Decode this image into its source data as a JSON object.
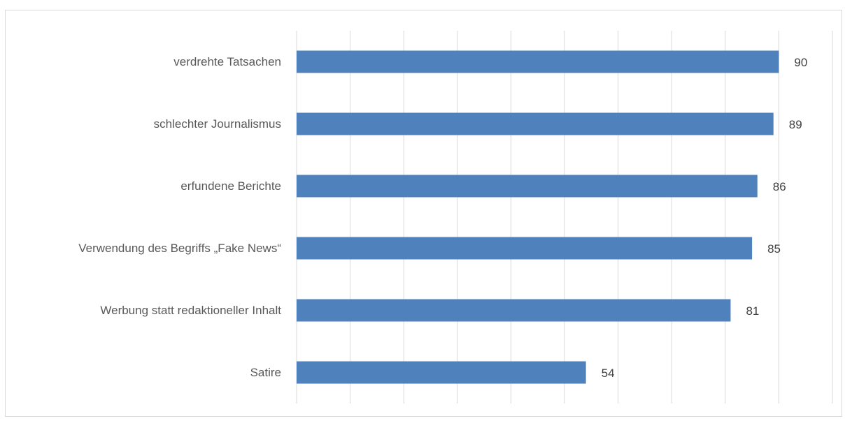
{
  "chart_data": {
    "type": "bar",
    "orientation": "horizontal",
    "categories": [
      "verdrehte Tatsachen",
      "schlechter Journalismus",
      "erfundene Berichte",
      "Verwendung des Begriffs „Fake News“",
      "Werbung statt redaktioneller Inhalt",
      "Satire"
    ],
    "values": [
      90,
      89,
      86,
      85,
      81,
      54
    ],
    "title": "",
    "xlabel": "",
    "ylabel": "",
    "xlim": [
      0,
      100
    ],
    "grid": true,
    "legend": "none",
    "data_labels": true,
    "bar_color": "#4f81bd"
  }
}
